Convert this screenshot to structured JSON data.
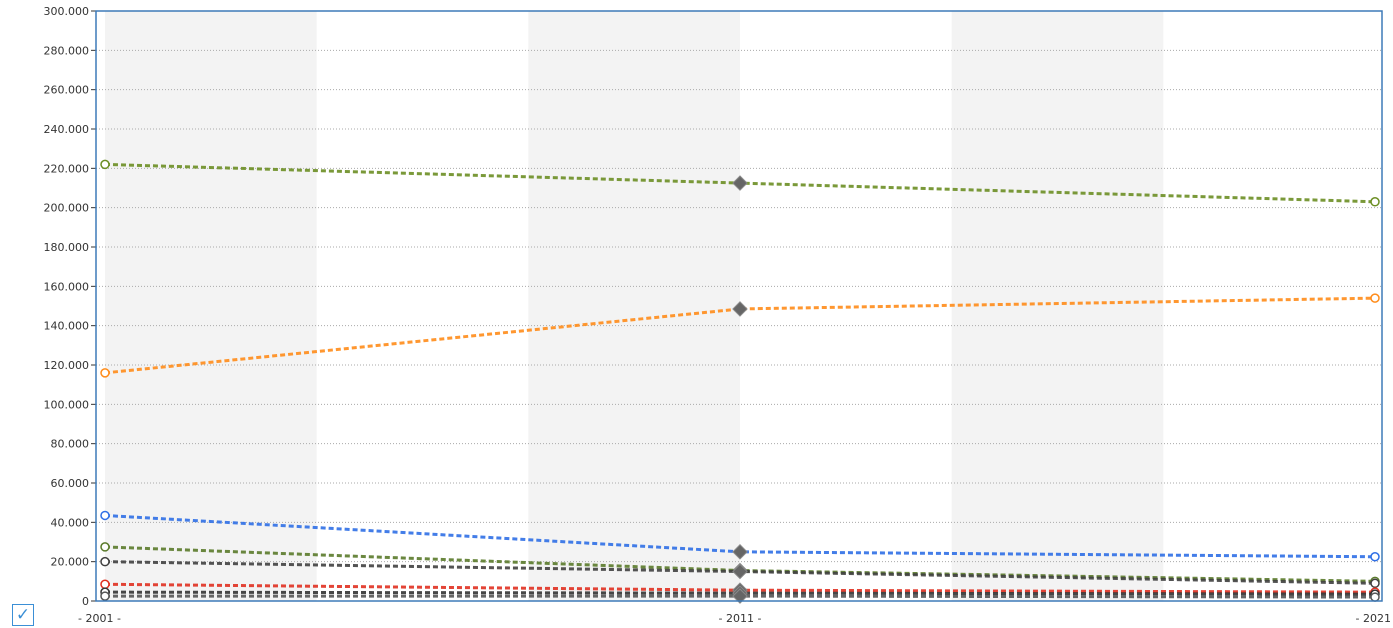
{
  "chart_data": {
    "type": "line",
    "x": [
      "2001",
      "2011",
      "2021"
    ],
    "x_tick_labels": [
      "- 2001 -",
      "- 2011 -",
      "- 2021"
    ],
    "ylim": [
      0,
      300000
    ],
    "y_ticks": [
      0,
      20000,
      40000,
      60000,
      80000,
      100000,
      120000,
      140000,
      160000,
      180000,
      200000,
      220000,
      240000,
      260000,
      280000,
      300000
    ],
    "y_tick_labels": [
      "0",
      "20.000",
      "40.000",
      "60.000",
      "80.000",
      "100.000",
      "120.000",
      "140.000",
      "160.000",
      "180.000",
      "200.000",
      "220.000",
      "240.000",
      "260.000",
      "280.000",
      "300.000"
    ],
    "grid": true,
    "series": [
      {
        "color": "#6b8e23",
        "values": [
          222000,
          212500,
          203000
        ]
      },
      {
        "color": "#ff8c1a",
        "values": [
          116000,
          148500,
          154000
        ]
      },
      {
        "color": "#2f6fe6",
        "values": [
          43500,
          25000,
          22500
        ]
      },
      {
        "color": "#5a7a2a",
        "values": [
          27500,
          15500,
          10000
        ]
      },
      {
        "color": "#404040",
        "values": [
          20000,
          15000,
          9000
        ]
      },
      {
        "color": "#e03020",
        "values": [
          8500,
          5500,
          4500
        ]
      },
      {
        "color": "#333333",
        "values": [
          4500,
          4000,
          3500
        ]
      },
      {
        "color": "#555555",
        "values": [
          2500,
          2500,
          2000
        ]
      }
    ]
  },
  "legend": {
    "checkbox_glyph": "✓",
    "checked": true
  }
}
